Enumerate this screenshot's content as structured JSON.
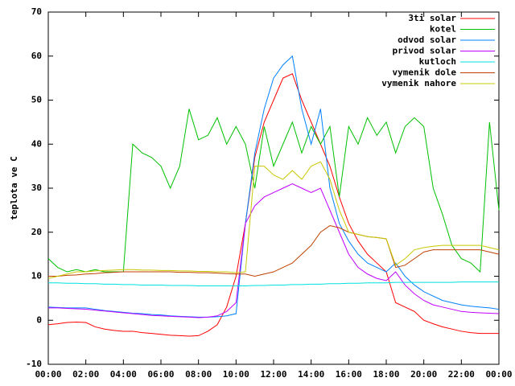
{
  "chart_data": {
    "type": "line",
    "y_label": "teplota ve C",
    "x": [
      0,
      0.5,
      1,
      1.5,
      2,
      2.5,
      3,
      3.5,
      4,
      4.5,
      5,
      5.5,
      6,
      6.5,
      7,
      7.5,
      8,
      8.5,
      9,
      9.5,
      10,
      10.5,
      11,
      11.5,
      12,
      12.5,
      13,
      13.5,
      14,
      14.5,
      15,
      15.5,
      16,
      16.5,
      17,
      17.5,
      18,
      18.5,
      19,
      19.5,
      20,
      20.5,
      21,
      21.5,
      22,
      22.5,
      23,
      23.5,
      24
    ],
    "xlim": [
      0,
      24
    ],
    "xticks": [
      {
        "value": 0,
        "label": "00:00"
      },
      {
        "value": 2,
        "label": "02:00"
      },
      {
        "value": 4,
        "label": "04:00"
      },
      {
        "value": 6,
        "label": "06:00"
      },
      {
        "value": 8,
        "label": "08:00"
      },
      {
        "value": 10,
        "label": "10:00"
      },
      {
        "value": 12,
        "label": "12:00"
      },
      {
        "value": 14,
        "label": "14:00"
      },
      {
        "value": 16,
        "label": "16:00"
      },
      {
        "value": 18,
        "label": "18:00"
      },
      {
        "value": 20,
        "label": "20:00"
      },
      {
        "value": 22,
        "label": "22:00"
      },
      {
        "value": 24,
        "label": "00:00"
      }
    ],
    "ylim": [
      -10,
      70
    ],
    "yticks": [
      -10,
      0,
      10,
      20,
      30,
      40,
      50,
      60,
      70
    ],
    "legend": "top-right",
    "series": [
      {
        "name": "3ti solar",
        "color": "#ff0000",
        "values": [
          -1,
          -0.8,
          -0.5,
          -0.4,
          -0.5,
          -1.5,
          -2,
          -2.3,
          -2.5,
          -2.5,
          -2.8,
          -3,
          -3.2,
          -3.4,
          -3.5,
          -3.6,
          -3.5,
          -2.5,
          -1,
          3,
          10,
          22,
          37,
          45,
          50,
          55,
          56,
          50,
          45,
          40,
          35,
          28,
          22,
          18,
          15,
          13,
          11,
          4,
          3,
          2,
          0,
          -0.8,
          -1.5,
          -2,
          -2.5,
          -2.8,
          -3,
          -3,
          -3
        ]
      },
      {
        "name": "kotel",
        "color": "#00c000",
        "values": [
          14,
          12,
          11,
          11.5,
          11,
          11.5,
          11,
          11,
          11,
          40,
          38,
          37,
          35,
          30,
          35,
          48,
          41,
          42,
          46,
          40,
          44,
          40,
          30,
          44,
          35,
          40,
          45,
          38,
          44,
          40,
          44,
          28,
          44,
          40,
          46,
          42,
          45,
          38,
          44,
          46,
          44,
          30,
          24,
          17,
          14,
          13,
          11,
          45,
          25
        ]
      },
      {
        "name": "odvod solar",
        "color": "#0080ff",
        "values": [
          3,
          2.9,
          2.8,
          2.8,
          2.8,
          2.5,
          2.2,
          2,
          1.8,
          1.6,
          1.5,
          1.3,
          1.2,
          1,
          0.9,
          0.8,
          0.7,
          0.7,
          0.8,
          1,
          1.5,
          22,
          38,
          48,
          55,
          58,
          60,
          48,
          40,
          48,
          30,
          22,
          18,
          15,
          13,
          12,
          11,
          13,
          10,
          8,
          6.5,
          5.5,
          4.5,
          4,
          3.5,
          3.2,
          3,
          2.8,
          2.5
        ]
      },
      {
        "name": "privod solar",
        "color": "#c000ff",
        "values": [
          2.8,
          2.8,
          2.7,
          2.6,
          2.5,
          2.3,
          2.1,
          1.9,
          1.7,
          1.5,
          1.3,
          1.1,
          1,
          0.9,
          0.8,
          0.7,
          0.6,
          0.7,
          1,
          2,
          4,
          22,
          26,
          28,
          29,
          30,
          31,
          30,
          29,
          30,
          25,
          20,
          15,
          12,
          10.5,
          9.5,
          9,
          11,
          8,
          6,
          4.5,
          3.5,
          3,
          2.5,
          2,
          1.8,
          1.7,
          1.6,
          1.5
        ]
      },
      {
        "name": "kutloch",
        "color": "#00e0e0",
        "values": [
          8.5,
          8.5,
          8.4,
          8.4,
          8.3,
          8.3,
          8.2,
          8.2,
          8.1,
          8.1,
          8,
          8,
          8,
          7.9,
          7.9,
          7.9,
          7.8,
          7.8,
          7.8,
          7.8,
          7.8,
          7.8,
          7.9,
          7.9,
          8,
          8,
          8.1,
          8.1,
          8.2,
          8.2,
          8.3,
          8.3,
          8.4,
          8.4,
          8.5,
          8.5,
          8.5,
          8.6,
          8.6,
          8.6,
          8.6,
          8.6,
          8.6,
          8.6,
          8.7,
          8.7,
          8.7,
          8.7,
          8.7
        ]
      },
      {
        "name": "vymenik dole",
        "color": "#c04000",
        "values": [
          10,
          10,
          10.2,
          10.3,
          10.5,
          10.6,
          10.8,
          10.9,
          11,
          11,
          11,
          11,
          11,
          11,
          10.9,
          10.9,
          10.8,
          10.8,
          10.7,
          10.6,
          10.5,
          10.5,
          10,
          10.5,
          11,
          12,
          13,
          15,
          17,
          20,
          21.5,
          21,
          20,
          19.5,
          19,
          18.8,
          18.5,
          12,
          12.5,
          14,
          15.5,
          16,
          16,
          16,
          16,
          16,
          16,
          15.5,
          15
        ]
      },
      {
        "name": "vymenik nahore",
        "color": "#c8c800",
        "values": [
          9.5,
          10,
          10.5,
          11,
          11,
          11.2,
          11.3,
          11.4,
          11.5,
          11.5,
          11.4,
          11.4,
          11.3,
          11.3,
          11.2,
          11.2,
          11.1,
          11.1,
          11,
          11,
          10.8,
          11,
          35,
          35,
          33,
          32,
          34,
          32,
          35,
          36,
          32,
          25,
          20,
          19.5,
          19,
          18.8,
          18.5,
          12.5,
          14,
          16,
          16.5,
          16.8,
          17,
          17,
          17,
          17,
          17,
          16.5,
          16
        ]
      }
    ]
  }
}
